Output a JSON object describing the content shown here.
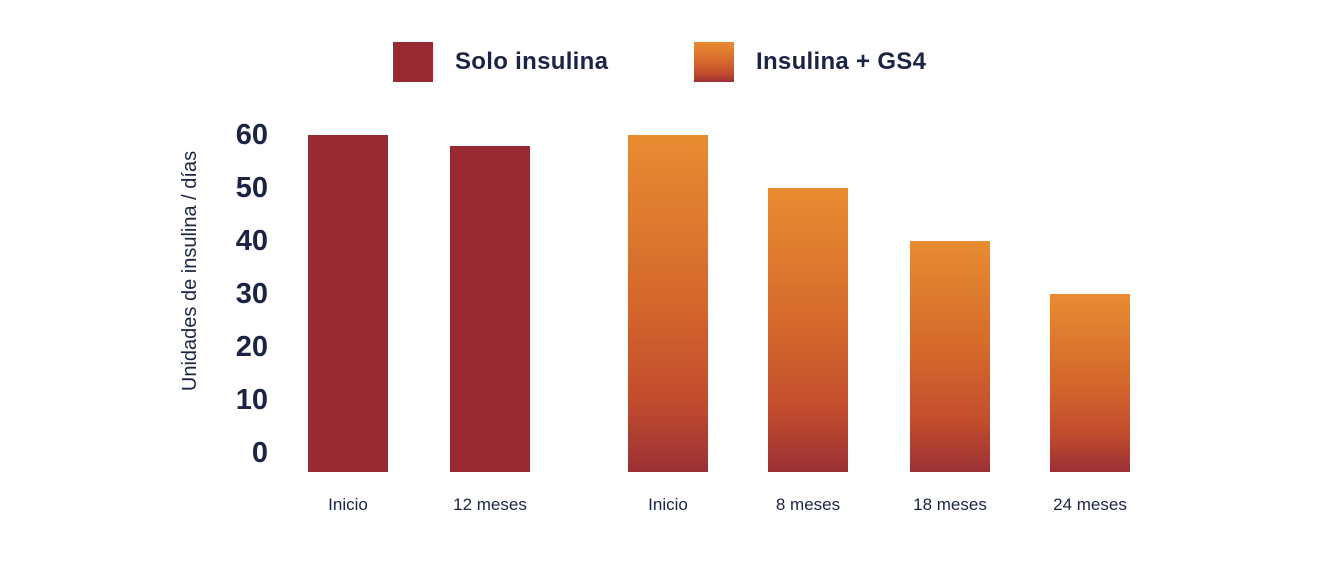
{
  "chart_data": {
    "type": "bar",
    "title": "",
    "xlabel": "",
    "ylabel": "Unidades de insulina / días",
    "ylim": [
      0,
      60
    ],
    "yticks": [
      0,
      10,
      20,
      30,
      40,
      50,
      60
    ],
    "grid": false,
    "legend_position": "top",
    "series": [
      {
        "name": "Solo insulina",
        "fill": "solid",
        "color": "#992a32",
        "points": [
          {
            "category": "Inicio",
            "value": 60
          },
          {
            "category": "12 meses",
            "value": 58
          }
        ]
      },
      {
        "name": "Insulina + GS4",
        "fill": "gradient",
        "gradient_stops": [
          {
            "color": "#e98c30",
            "pos": "0%"
          },
          {
            "color": "#d4672c",
            "pos": "50%"
          },
          {
            "color": "#c24d2d",
            "pos": "78%"
          },
          {
            "color": "#9c3035",
            "pos": "100%"
          }
        ],
        "points": [
          {
            "category": "Inicio",
            "value": 60
          },
          {
            "category": "8 meses",
            "value": 50
          },
          {
            "category": "18 meses",
            "value": 40
          },
          {
            "category": "24 meses",
            "value": 30
          }
        ]
      }
    ]
  },
  "colors": {
    "text": "#1b2445",
    "background": "#ffffff",
    "solid_red": "#992a32",
    "orange_top": "#e98c30",
    "orange_bottom": "#9c3035"
  }
}
